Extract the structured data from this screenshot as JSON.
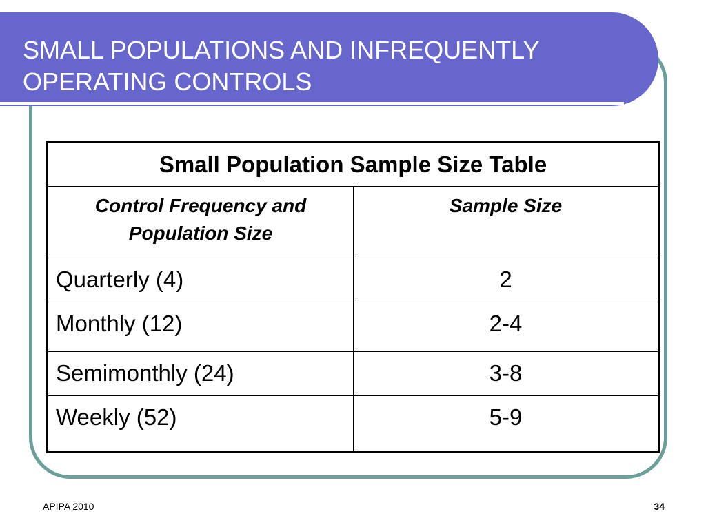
{
  "slide": {
    "title_line_1": "SMALL POPULATIONS AND INFREQUENTLY",
    "title_line_2": "OPERATING CONTROLS"
  },
  "table": {
    "caption": "Small Population Sample Size Table",
    "headers": [
      "Control Frequency and Population Size",
      "Sample Size"
    ],
    "header_line_1": "Control Frequency and",
    "header_line_2": "Population Size",
    "rows": [
      {
        "frequency": "Quarterly (4)",
        "sample_size": "2"
      },
      {
        "frequency": "Monthly (12)",
        "sample_size": "2-4"
      },
      {
        "frequency": "Semimonthly (24)",
        "sample_size": "3-8"
      },
      {
        "frequency": "Weekly (52)",
        "sample_size": "5-9"
      }
    ]
  },
  "footer": {
    "left": "APIPA 2010",
    "page_number": "34"
  },
  "colors": {
    "title_band": "#6666cc",
    "frame_border": "#6b9f9a",
    "title_text": "#ffffff"
  }
}
